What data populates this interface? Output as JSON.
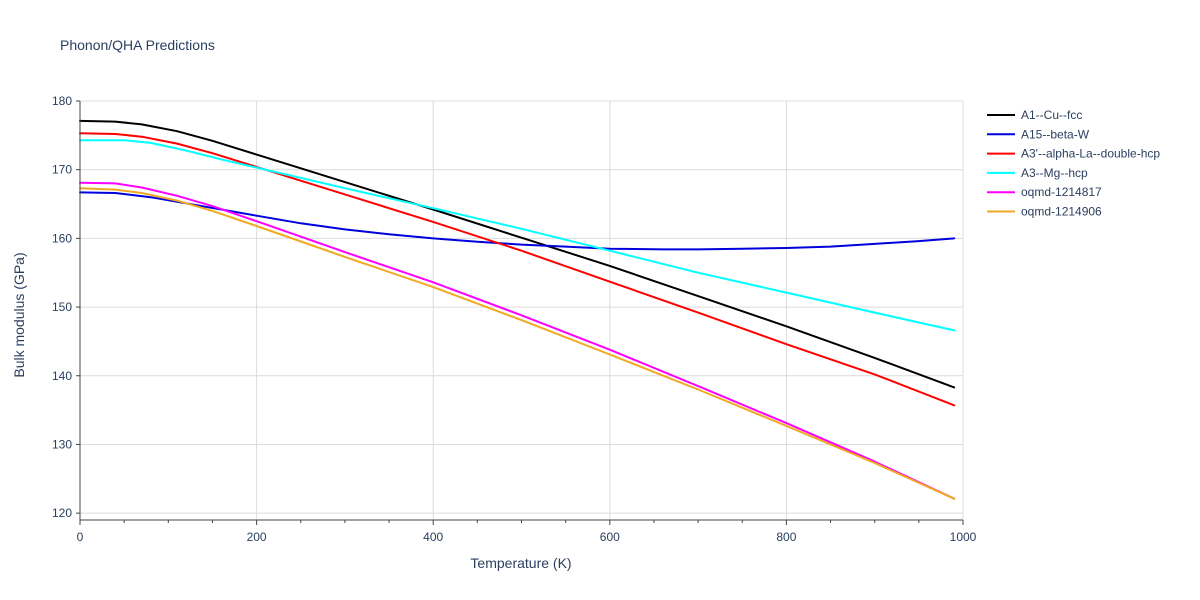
{
  "chart_data": {
    "type": "line",
    "title": "Phonon/QHA Predictions",
    "xlabel": "Temperature (K)",
    "ylabel": "Bulk modulus (GPa)",
    "xlim": [
      0,
      1000
    ],
    "ylim": [
      119,
      180
    ],
    "x_ticks": [
      0,
      200,
      400,
      600,
      800,
      1000
    ],
    "y_ticks": [
      120,
      130,
      140,
      150,
      160,
      170,
      180
    ],
    "grid": true,
    "legend_position": "top-right",
    "series": [
      {
        "name": "A1--Cu--fcc",
        "color": "#000000",
        "x": [
          0,
          40,
          70,
          110,
          150,
          200,
          300,
          400,
          500,
          600,
          700,
          800,
          900,
          990
        ],
        "y": [
          177.1,
          177.0,
          176.6,
          175.6,
          174.2,
          172.2,
          168.2,
          164.2,
          160.1,
          156.0,
          151.6,
          147.2,
          142.6,
          138.3
        ]
      },
      {
        "name": "A15--beta-W",
        "color": "#0000dd",
        "x": [
          0,
          40,
          80,
          120,
          160,
          200,
          250,
          300,
          350,
          400,
          450,
          500,
          550,
          600,
          660,
          700,
          750,
          800,
          850,
          900,
          950,
          990
        ],
        "y": [
          166.7,
          166.6,
          166.0,
          165.1,
          164.2,
          163.3,
          162.2,
          161.3,
          160.6,
          160.0,
          159.5,
          159.1,
          158.8,
          158.5,
          158.4,
          158.4,
          158.5,
          158.6,
          158.8,
          159.2,
          159.6,
          160.0
        ]
      },
      {
        "name": "A3'--alpha-La--double-hcp",
        "color": "#ff0000",
        "x": [
          0,
          40,
          70,
          110,
          150,
          200,
          300,
          400,
          500,
          600,
          700,
          800,
          900,
          990
        ],
        "y": [
          175.3,
          175.2,
          174.8,
          173.8,
          172.4,
          170.4,
          166.4,
          162.4,
          158.2,
          153.7,
          149.2,
          144.6,
          140.2,
          135.7
        ]
      },
      {
        "name": "A3--Mg--hcp",
        "color": "#00ffff",
        "x": [
          0,
          50,
          80,
          120,
          160,
          200,
          300,
          400,
          500,
          600,
          700,
          800,
          900,
          990
        ],
        "y": [
          174.3,
          174.3,
          173.9,
          172.8,
          171.5,
          170.3,
          167.3,
          164.4,
          161.4,
          158.2,
          155.0,
          152.1,
          149.2,
          146.6
        ]
      },
      {
        "name": "oqmd-1214817",
        "color": "#ff00ff",
        "x": [
          0,
          40,
          70,
          110,
          150,
          200,
          300,
          400,
          500,
          600,
          700,
          800,
          900,
          990
        ],
        "y": [
          168.1,
          168.0,
          167.4,
          166.2,
          164.7,
          162.5,
          158.0,
          153.6,
          148.8,
          143.8,
          138.5,
          133.1,
          127.5,
          122.1
        ]
      },
      {
        "name": "oqmd-1214906",
        "color": "#eeaa22",
        "x": [
          0,
          40,
          70,
          110,
          150,
          200,
          300,
          400,
          500,
          600,
          700,
          800,
          900,
          990
        ],
        "y": [
          167.3,
          167.1,
          166.6,
          165.5,
          164.0,
          161.8,
          157.3,
          152.9,
          148.1,
          143.1,
          138.0,
          132.7,
          127.3,
          122.1
        ]
      }
    ]
  }
}
